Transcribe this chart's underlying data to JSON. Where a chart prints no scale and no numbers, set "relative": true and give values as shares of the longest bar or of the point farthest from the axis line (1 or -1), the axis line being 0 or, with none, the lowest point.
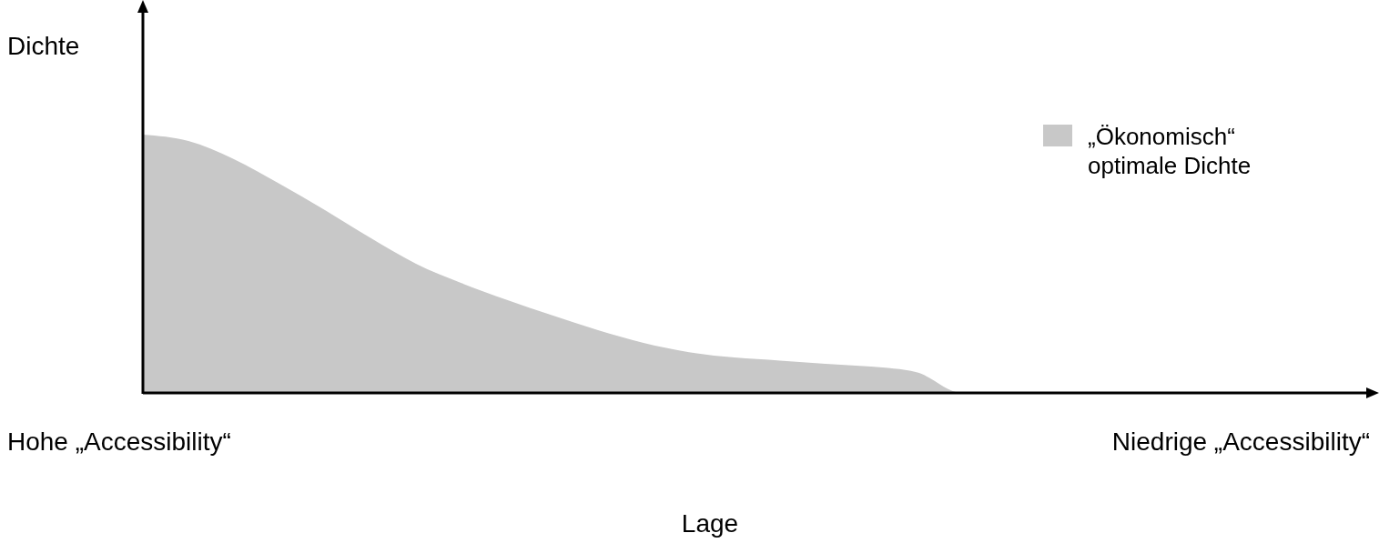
{
  "chart_data": {
    "type": "area",
    "relative": true,
    "ylabel": "Dichte",
    "xlabel": "Lage",
    "annotations": [
      "Hohe „Accessibility“",
      "Niedrige „Accessibility“"
    ],
    "categories": [
      null,
      null,
      null,
      null,
      null,
      null,
      null,
      null,
      null,
      null,
      null,
      null,
      null,
      null,
      null,
      null,
      null,
      null,
      null,
      null,
      null,
      null,
      null,
      null,
      null,
      null,
      null,
      null
    ],
    "series": [
      {
        "name": "„Ökonomisch“ optimale Dichte",
        "color": "#c8c8c8",
        "values": [
          1.0,
          0.975,
          0.905,
          0.81,
          0.708,
          0.6,
          0.5,
          0.425,
          0.36,
          0.3,
          0.243,
          0.194,
          0.158,
          0.137,
          0.125,
          0.113,
          0.102,
          0.08,
          0,
          0,
          0,
          0,
          0,
          0,
          0,
          0,
          0,
          0
        ]
      }
    ],
    "legend": "top right"
  }
}
